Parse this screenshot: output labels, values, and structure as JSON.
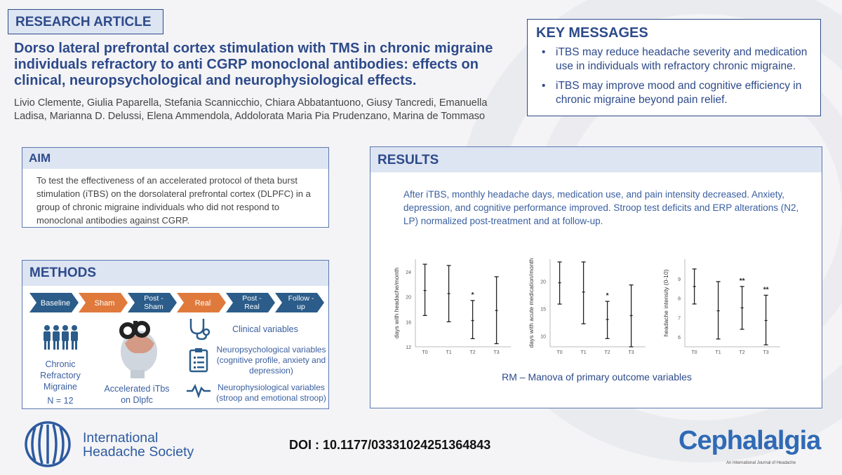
{
  "tag": "RESEARCH ARTICLE",
  "title": "Dorso lateral prefrontal cortex stimulation with TMS in chronic migraine individuals refractory to anti CGRP monoclonal antibodies: effects on clinical, neuropsychological and neurophysiological effects.",
  "authors": "Livio Clemente, Giulia Paparella, Stefania Scannicchio, Chiara Abbatantuono, Giusy Tancredi, Emanuella Ladisa,  Marianna D. Delussi,  Elena Ammendola, Addolorata Maria Pia Prudenzano, Marina de Tommaso",
  "key_messages": {
    "heading": "KEY MESSAGES",
    "items": [
      "iTBS may reduce headache severity and medication use in individuals with refractory chronic migraine.",
      "iTBS may improve mood and cognitive efficiency in chronic migraine beyond pain relief."
    ]
  },
  "aim": {
    "heading": "AIM",
    "text": "To test the effectiveness of an accelerated protocol of theta burst stimulation (iTBS) on the dorsolateral prefrontal cortex (DLPFC) in a group of chronic migraine individuals who did not respond to monoclonal antibodies against CGRP."
  },
  "methods": {
    "heading": "METHODS",
    "steps": [
      "Baseline",
      "Sham",
      "Post - Sham",
      "Real",
      "Post - Real",
      "Follow - up"
    ],
    "step_colors": [
      "#2b5c8a",
      "#e07a3c",
      "#2b5c8a",
      "#e07a3c",
      "#2b5c8a",
      "#2b5c8a"
    ],
    "group_label": "Chronic Refractory Migraine",
    "n": "N = 12",
    "treatment": "Accelerated iTbs on Dlpfc",
    "variables": [
      {
        "icon": "stethoscope-icon",
        "label": "Clinical variables"
      },
      {
        "icon": "clipboard-icon",
        "label": "Neuropsychological variables (cognitive profile, anxiety and depression)"
      },
      {
        "icon": "waveform-icon",
        "label": "Neurophysiological variables (stroop and emotional stroop)"
      }
    ]
  },
  "results": {
    "heading": "RESULTS",
    "summary": "After iTBS, monthly headache days, medication use, and pain intensity decreased. Anxiety, depression, and cognitive performance improved. Stroop test deficits and ERP alterations  (N2, LP) normalized post-treatment and at follow-up.",
    "caption": "RM – Manova of primary outcome variables"
  },
  "chart_data": [
    {
      "type": "scatter",
      "ylabel": "days with headache/month",
      "categories": [
        "T0",
        "T1",
        "T2",
        "T3"
      ],
      "yticks": [
        "12",
        "16",
        "20",
        "24"
      ],
      "ylim": [
        12,
        26
      ],
      "series": [
        {
          "mean": [
            21,
            20.5,
            16.2,
            17.8
          ],
          "low": [
            17,
            16,
            13.3,
            12.5
          ],
          "high": [
            25.2,
            25,
            19.4,
            23.2
          ]
        }
      ],
      "significance": [
        "",
        "",
        "*",
        ""
      ]
    },
    {
      "type": "scatter",
      "ylabel": "days with acute medication/month",
      "categories": [
        "T0",
        "T1",
        "T2",
        "T3"
      ],
      "yticks": [
        "10",
        "15",
        "20"
      ],
      "ylim": [
        8,
        24
      ],
      "series": [
        {
          "mean": [
            19.7,
            18,
            13,
            13.7
          ],
          "low": [
            15.8,
            12.2,
            9.5,
            8
          ],
          "high": [
            23.5,
            23.5,
            16.3,
            19.3
          ]
        }
      ],
      "significance": [
        "",
        "",
        "*",
        ""
      ]
    },
    {
      "type": "scatter",
      "ylabel": "headache intensity (0-10)",
      "categories": [
        "T0",
        "T1",
        "T2",
        "T3"
      ],
      "yticks": [
        "6",
        "7",
        "8",
        "9"
      ],
      "ylim": [
        5.5,
        10
      ],
      "series": [
        {
          "mean": [
            8.6,
            7.35,
            7.5,
            6.85
          ],
          "low": [
            7.7,
            5.9,
            6.4,
            5.6
          ],
          "high": [
            9.5,
            8.85,
            8.6,
            8.15
          ]
        }
      ],
      "significance": [
        "",
        "",
        "**",
        "**"
      ]
    }
  ],
  "footer": {
    "society": "International Headache Society",
    "doi": "DOI : 10.1177/03331024251364843",
    "journal": "Cephalalgia",
    "journal_sub": "An International Journal of Headache"
  }
}
